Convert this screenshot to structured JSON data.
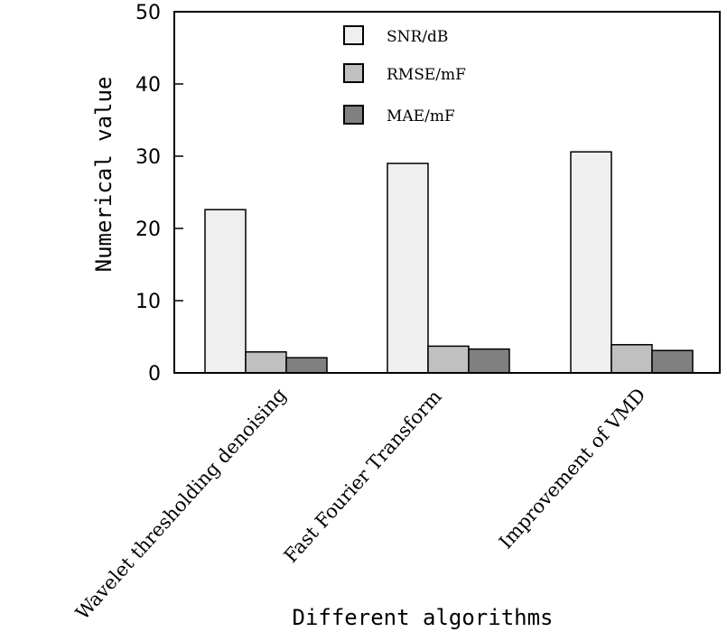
{
  "chart_data": {
    "type": "bar",
    "title": "",
    "xlabel": "Different algorithms",
    "ylabel": "Numerical value",
    "ylim": [
      0,
      50
    ],
    "yticks": [
      0,
      10,
      20,
      30,
      40,
      50
    ],
    "yticks_labels": [
      "0",
      "10",
      "20",
      "30",
      "40",
      "50"
    ],
    "grid": false,
    "legend_position": "top-center",
    "categories": [
      "Wavelet thresholding denoising",
      "Fast Fourier Transform",
      "Improvement of VMD"
    ],
    "series": [
      {
        "name": "SNR/dB",
        "color": "#efefef",
        "values": [
          22.6,
          29.0,
          30.6
        ]
      },
      {
        "name": "RMSE/mF",
        "color": "#c0c0c0",
        "values": [
          2.9,
          3.7,
          3.9
        ]
      },
      {
        "name": "MAE/mF",
        "color": "#808080",
        "values": [
          2.1,
          3.3,
          3.1
        ]
      }
    ]
  }
}
